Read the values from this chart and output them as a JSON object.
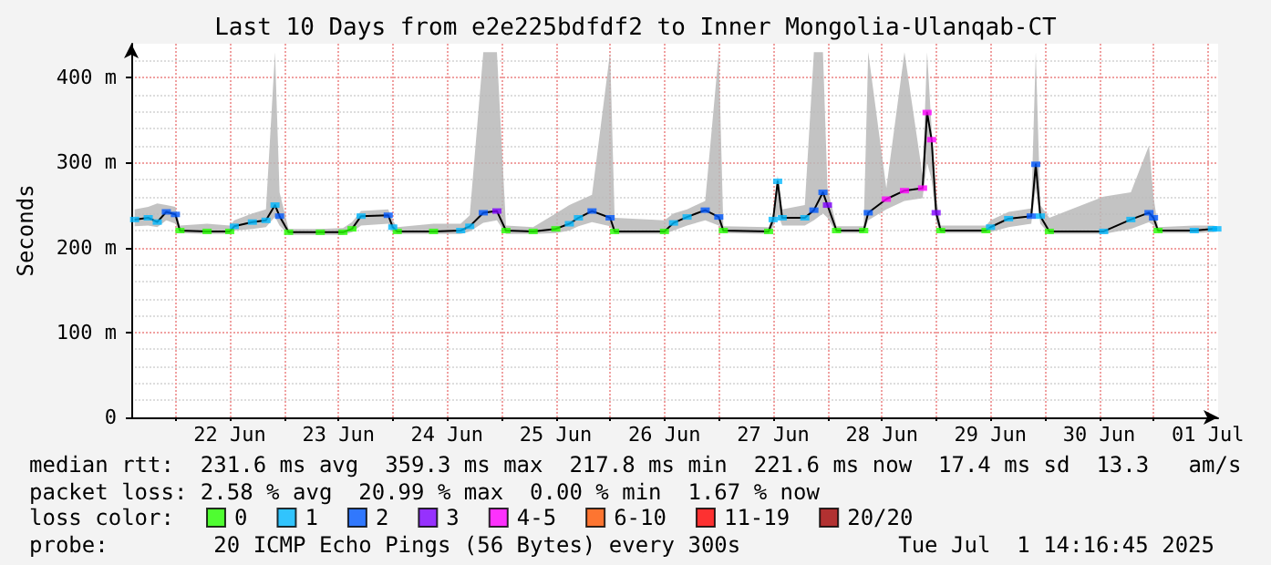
{
  "chart_data": {
    "type": "line",
    "title": "Last 10 Days from e2e225bdfdf2 to Inner Mongolia-Ulanqab-CT",
    "ylabel": "Seconds",
    "annotations": [
      "median rtt:  231.6 ms avg  359.3 ms max  217.8 ms min  221.6 ms now  17.4 ms sd  13.3   am/s",
      "packet loss: 2.58 % avg  20.99 % max  0.00 % min  1.67 % now",
      "loss color:",
      "probe:        20 ICMP Echo Pings (56 Bytes) every 300s",
      "Tue Jul  1 14:16:45 2025"
    ],
    "x": [
      "2025-06-21T15:00",
      "2025-06-21T18:00",
      "2025-06-21T20:00",
      "2025-06-21T22:00",
      "2025-06-22T00:00",
      "2025-06-22T01:00",
      "2025-06-22T07:00",
      "2025-06-22T12:00",
      "2025-06-22T13:00",
      "2025-06-22T17:00",
      "2025-06-22T20:00",
      "2025-06-22T22:00",
      "2025-06-22T23:00",
      "2025-06-23T01:00",
      "2025-06-23T08:00",
      "2025-06-23T13:00",
      "2025-06-23T15:00",
      "2025-06-23T17:00",
      "2025-06-23T23:00",
      "2025-06-24T00:00",
      "2025-06-24T01:00",
      "2025-06-24T09:00",
      "2025-06-24T15:00",
      "2025-06-24T17:00",
      "2025-06-24T20:00",
      "2025-06-24T23:00",
      "2025-06-25T01:00",
      "2025-06-25T07:00",
      "2025-06-25T12:00",
      "2025-06-25T15:00",
      "2025-06-25T17:00",
      "2025-06-25T20:00",
      "2025-06-26T00:00",
      "2025-06-26T01:00",
      "2025-06-26T12:00",
      "2025-06-26T14:00",
      "2025-06-26T17:00",
      "2025-06-26T21:00",
      "2025-06-27T00:00",
      "2025-06-27T01:00",
      "2025-06-27T11:00",
      "2025-06-27T12:00",
      "2025-06-27T13:00",
      "2025-06-27T14:00",
      "2025-06-27T19:00",
      "2025-06-27T21:00",
      "2025-06-27T23:00",
      "2025-06-28T00:00",
      "2025-06-28T02:00",
      "2025-06-28T08:00",
      "2025-06-28T09:00",
      "2025-06-28T13:00",
      "2025-06-28T17:00",
      "2025-06-28T21:00",
      "2025-06-28T22:00",
      "2025-06-28T23:00",
      "2025-06-29T00:00",
      "2025-06-29T01:00",
      "2025-06-29T11:00",
      "2025-06-29T12:00",
      "2025-06-29T16:00",
      "2025-06-29T21:00",
      "2025-06-29T22:00",
      "2025-06-29T23:00",
      "2025-06-30T01:00",
      "2025-06-30T13:00",
      "2025-06-30T19:00",
      "2025-06-30T23:00",
      "2025-07-01T00:00",
      "2025-07-01T01:00",
      "2025-07-01T09:00",
      "2025-07-01T13:00",
      "2025-07-01T14:00"
    ],
    "series": [
      {
        "color": "#000000",
        "marker": "none",
        "values": [
          233,
          235,
          230,
          242,
          239,
          220,
          219,
          219,
          225,
          230,
          232,
          250,
          237,
          218,
          218,
          218,
          222,
          237,
          238,
          224,
          219,
          219,
          220,
          225,
          241,
          243,
          220,
          219,
          222,
          228,
          235,
          243,
          235,
          219,
          219,
          229,
          236,
          244,
          236,
          220,
          219,
          233,
          278,
          235,
          235,
          244,
          265,
          250,
          220,
          220,
          241,
          257,
          267,
          270,
          359,
          327,
          241,
          220,
          220,
          224,
          234,
          237,
          298,
          237,
          219,
          219,
          233,
          241,
          235,
          220,
          220,
          222,
          222
        ],
        "lower": [
          225,
          226,
          224,
          232,
          228,
          217,
          216,
          216,
          220,
          222,
          224,
          236,
          226,
          215,
          215,
          215,
          218,
          226,
          228,
          218,
          216,
          216,
          216,
          219,
          229,
          232,
          216,
          216,
          217,
          220,
          225,
          230,
          225,
          216,
          216,
          220,
          226,
          232,
          226,
          217,
          216,
          224,
          240,
          226,
          226,
          232,
          240,
          235,
          217,
          217,
          232,
          245,
          255,
          258,
          300,
          280,
          230,
          217,
          217,
          218,
          224,
          228,
          270,
          228,
          216,
          216,
          222,
          230,
          226,
          217,
          217,
          218,
          219
        ],
        "upper": [
          245,
          248,
          252,
          250,
          248,
          226,
          228,
          226,
          232,
          240,
          245,
          430,
          265,
          222,
          222,
          223,
          230,
          243,
          245,
          232,
          224,
          228,
          228,
          238,
          430,
          430,
          226,
          224,
          240,
          250,
          255,
          262,
          430,
          235,
          232,
          240,
          245,
          255,
          430,
          225,
          224,
          240,
          285,
          245,
          250,
          430,
          430,
          270,
          225,
          225,
          430,
          270,
          430,
          285,
          430,
          340,
          260,
          226,
          226,
          232,
          242,
          246,
          430,
          250,
          235,
          260,
          265,
          320,
          260,
          224,
          226,
          226,
          225
        ]
      },
      {
        "type": "scatter",
        "name": "0",
        "color": "#26ff00",
        "x": [
          "2025-06-22T01:00",
          "2025-06-22T07:00",
          "2025-06-22T12:00",
          "2025-06-23T01:00",
          "2025-06-23T08:00",
          "2025-06-23T13:00",
          "2025-06-23T15:00",
          "2025-06-24T01:00",
          "2025-06-24T09:00",
          "2025-06-25T01:00",
          "2025-06-25T07:00",
          "2025-06-25T12:00",
          "2025-06-26T01:00",
          "2025-06-26T12:00",
          "2025-06-27T01:00",
          "2025-06-27T11:00",
          "2025-06-28T02:00",
          "2025-06-28T08:00",
          "2025-06-29T01:00",
          "2025-06-29T11:00",
          "2025-06-30T01:00",
          "2025-07-01T01:00"
        ],
        "values": [
          220,
          219,
          219,
          218,
          218,
          218,
          222,
          219,
          219,
          220,
          219,
          222,
          219,
          219,
          220,
          219,
          220,
          220,
          220,
          220,
          219,
          220
        ]
      },
      {
        "type": "scatter",
        "name": "1",
        "color": "#00b8ff",
        "x": [
          "2025-06-21T15:00",
          "2025-06-21T18:00",
          "2025-06-21T20:00",
          "2025-06-22T13:00",
          "2025-06-22T17:00",
          "2025-06-22T20:00",
          "2025-06-22T22:00",
          "2025-06-23T17:00",
          "2025-06-24T00:00",
          "2025-06-24T15:00",
          "2025-06-24T17:00",
          "2025-06-25T15:00",
          "2025-06-25T17:00",
          "2025-06-26T14:00",
          "2025-06-26T17:00",
          "2025-06-27T12:00",
          "2025-06-27T13:00",
          "2025-06-27T14:00",
          "2025-06-27T19:00",
          "2025-06-29T12:00",
          "2025-06-29T16:00",
          "2025-06-29T23:00",
          "2025-06-30T13:00",
          "2025-06-30T19:00",
          "2025-07-01T09:00",
          "2025-07-01T13:00",
          "2025-07-01T14:00"
        ],
        "values": [
          233,
          235,
          230,
          225,
          230,
          232,
          250,
          237,
          224,
          220,
          225,
          228,
          235,
          229,
          236,
          233,
          278,
          235,
          235,
          224,
          234,
          237,
          219,
          233,
          220,
          222,
          222
        ]
      },
      {
        "type": "scatter",
        "name": "2",
        "color": "#0059ff",
        "x": [
          "2025-06-21T22:00",
          "2025-06-22T00:00",
          "2025-06-22T23:00",
          "2025-06-23T23:00",
          "2025-06-24T20:00",
          "2025-06-25T20:00",
          "2025-06-26T00:00",
          "2025-06-26T21:00",
          "2025-06-27T00:00",
          "2025-06-27T21:00",
          "2025-06-27T23:00",
          "2025-06-28T09:00",
          "2025-06-29T21:00",
          "2025-06-29T22:00",
          "2025-06-30T23:00",
          "2025-07-01T00:00"
        ],
        "values": [
          242,
          239,
          237,
          238,
          241,
          243,
          235,
          244,
          236,
          244,
          265,
          241,
          237,
          298,
          241,
          235
        ]
      },
      {
        "type": "scatter",
        "name": "3",
        "color": "#7e00ff",
        "x": [
          "2025-06-24T23:00",
          "2025-06-28T00:00",
          "2025-06-29T00:00"
        ],
        "values": [
          243,
          250,
          241
        ]
      },
      {
        "type": "scatter",
        "name": "4-5",
        "color": "#ff00ff",
        "x": [
          "2025-06-28T13:00",
          "2025-06-28T17:00",
          "2025-06-28T21:00",
          "2025-06-28T22:00",
          "2025-06-28T23:00"
        ],
        "values": [
          257,
          267,
          270,
          359,
          327
        ]
      },
      {
        "type": "scatter",
        "name": "6-10",
        "color": "#ff5500",
        "values": [
          null,
          null,
          null,
          null,
          null,
          null,
          null,
          null,
          null,
          null,
          null,
          null,
          null,
          null,
          null,
          null,
          null,
          null,
          null,
          null,
          null,
          null,
          null,
          null,
          null,
          null,
          null,
          null,
          null,
          null,
          null,
          null,
          null,
          null,
          null,
          null,
          null,
          null,
          null,
          null,
          null,
          null,
          null,
          null,
          null,
          null,
          null,
          null,
          null,
          null,
          null,
          null,
          null,
          null,
          null,
          null,
          null,
          null,
          null,
          null,
          null,
          null,
          null,
          null,
          null,
          null,
          null,
          null,
          null,
          null,
          null,
          null,
          null
        ]
      },
      {
        "type": "scatter",
        "name": "11-19",
        "color": "#ff0000",
        "values": [
          null,
          null,
          null,
          null,
          null,
          null,
          null,
          null,
          null,
          null,
          null,
          null,
          null,
          null,
          null,
          null,
          null,
          null,
          null,
          null,
          null,
          null,
          null,
          null,
          null,
          null,
          null,
          null,
          null,
          null,
          null,
          null,
          null,
          null,
          null,
          null,
          null,
          null,
          null,
          null,
          null,
          null,
          null,
          null,
          null,
          null,
          null,
          null,
          null,
          null,
          null,
          null,
          null,
          null,
          null,
          null,
          null,
          null,
          null,
          null,
          null,
          null,
          null,
          null,
          null,
          null,
          null,
          null,
          null,
          null,
          null,
          null,
          null
        ]
      },
      {
        "type": "scatter",
        "name": "20/20",
        "color": "#a10000",
        "values": [
          null,
          null,
          null,
          null,
          null,
          null,
          null,
          null,
          null,
          null,
          null,
          null,
          null,
          null,
          null,
          null,
          null,
          null,
          null,
          null,
          null,
          null,
          null,
          null,
          null,
          null,
          null,
          null,
          null,
          null,
          null,
          null,
          null,
          null,
          null,
          null,
          null,
          null,
          null,
          null,
          null,
          null,
          null,
          null,
          null,
          null,
          null,
          null,
          null,
          null,
          null,
          null,
          null,
          null,
          null,
          null,
          null,
          null,
          null,
          null,
          null,
          null,
          null,
          null,
          null,
          null,
          null,
          null,
          null,
          null,
          null,
          null,
          null
        ]
      }
    ],
    "xlim": [
      "2025-06-21T14:16",
      "2025-07-01T14:16"
    ],
    "xticks": [
      {
        "value": "2025-06-22T00:00",
        "label": null
      },
      {
        "value": "2025-06-22T12:00",
        "label": "22 Jun"
      },
      {
        "value": "2025-06-23T00:00",
        "label": null
      },
      {
        "value": "2025-06-23T12:00",
        "label": "23 Jun"
      },
      {
        "value": "2025-06-24T00:00",
        "label": null
      },
      {
        "value": "2025-06-24T12:00",
        "label": "24 Jun"
      },
      {
        "value": "2025-06-25T00:00",
        "label": null
      },
      {
        "value": "2025-06-25T12:00",
        "label": "25 Jun"
      },
      {
        "value": "2025-06-26T00:00",
        "label": null
      },
      {
        "value": "2025-06-26T12:00",
        "label": "26 Jun"
      },
      {
        "value": "2025-06-27T00:00",
        "label": null
      },
      {
        "value": "2025-06-27T12:00",
        "label": "27 Jun"
      },
      {
        "value": "2025-06-28T00:00",
        "label": null
      },
      {
        "value": "2025-06-28T12:00",
        "label": "28 Jun"
      },
      {
        "value": "2025-06-29T00:00",
        "label": null
      },
      {
        "value": "2025-06-29T12:00",
        "label": "29 Jun"
      },
      {
        "value": "2025-06-30T00:00",
        "label": null
      },
      {
        "value": "2025-06-30T12:00",
        "label": "30 Jun"
      },
      {
        "value": "2025-07-01T00:00",
        "label": null
      },
      {
        "value": "2025-07-01T12:00",
        "label": "01 Jul"
      }
    ],
    "ylim": [
      0,
      440
    ],
    "yticks": [
      0,
      {
        "value": 100,
        "label": "100 m"
      },
      {
        "value": 200,
        "label": "200 m"
      },
      {
        "value": 300,
        "label": "300 m"
      },
      {
        "value": 400,
        "label": "400 m"
      }
    ],
    "grid": true,
    "legend": "bottom",
    "marker": "square"
  }
}
